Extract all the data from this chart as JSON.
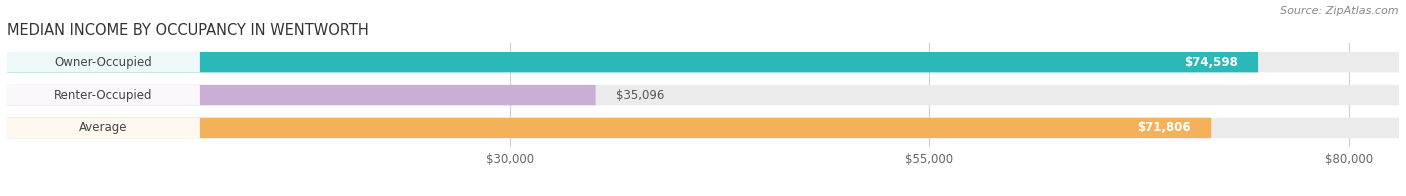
{
  "title": "MEDIAN INCOME BY OCCUPANCY IN WENTWORTH",
  "source": "Source: ZipAtlas.com",
  "categories": [
    "Owner-Occupied",
    "Renter-Occupied",
    "Average"
  ],
  "values": [
    74598,
    35096,
    71806
  ],
  "bar_colors": [
    "#2ab8b8",
    "#c9aed6",
    "#f5b05a"
  ],
  "bar_bg_color": "#ebebeb",
  "value_labels": [
    "$74,598",
    "$35,096",
    "$71,806"
  ],
  "value_inside": [
    true,
    false,
    true
  ],
  "xmin": 0,
  "xmax": 83000,
  "xticks": [
    30000,
    55000,
    80000
  ],
  "xtick_labels": [
    "$30,000",
    "$55,000",
    "$80,000"
  ],
  "title_fontsize": 10.5,
  "source_fontsize": 8,
  "label_fontsize": 8.5,
  "value_fontsize": 8.5,
  "bar_height": 0.62,
  "background_color": "#ffffff",
  "grid_color": "#d0d0d0",
  "label_text_color": "#444444",
  "value_inside_color": "#ffffff",
  "value_outside_color": "#555555"
}
